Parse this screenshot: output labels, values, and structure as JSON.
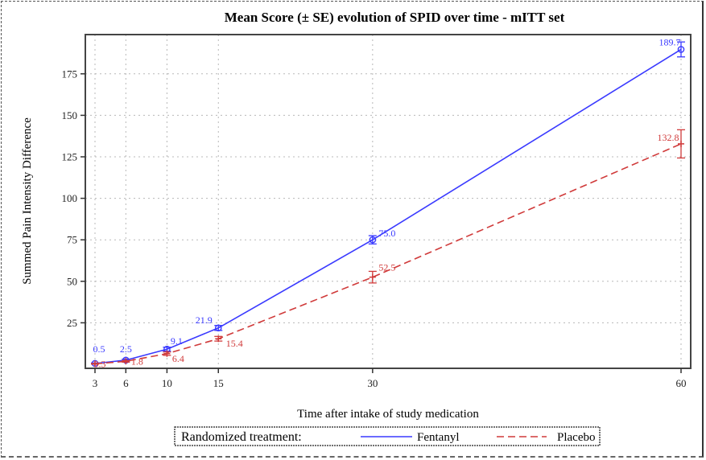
{
  "chart_data": {
    "type": "line",
    "title": "Mean Score (± SE) evolution of SPID over time - mITT set",
    "xlabel": "Time after intake of study medication",
    "ylabel": "Summed Pain Intensity Difference",
    "x": [
      3,
      6,
      10,
      15,
      30,
      60
    ],
    "x_tick_labels": [
      "3",
      "6",
      "10",
      "15",
      "30",
      "60"
    ],
    "y_ticks": [
      25,
      50,
      75,
      100,
      125,
      150,
      175
    ],
    "y_tick_labels": [
      "25",
      "50",
      "75",
      "100",
      "125",
      "150",
      "175"
    ],
    "xlim": [
      3,
      60
    ],
    "ylim": [
      0,
      195
    ],
    "grid": true,
    "legend": {
      "title": "Randomized treatment:",
      "placement": "bottom"
    },
    "series": [
      {
        "name": "Fentanyl",
        "color": "#3a3aff",
        "line_style": "solid",
        "marker": "circle",
        "values": [
          0.5,
          2.5,
          9.1,
          21.9,
          75.0,
          189.7
        ],
        "se": [
          0.3,
          0.6,
          1.2,
          1.5,
          2.5,
          4.5
        ],
        "labels": [
          "0.5",
          "2.5",
          "9.1",
          "21.9",
          "75.0",
          "189.7"
        ]
      },
      {
        "name": "Placebo",
        "color": "#d03a3a",
        "line_style": "dashed",
        "marker": "plus",
        "values": [
          0.3,
          1.8,
          6.4,
          15.4,
          52.5,
          132.8
        ],
        "se": [
          0.2,
          0.5,
          1.0,
          1.4,
          3.5,
          8.5
        ],
        "labels": [
          "0.3",
          "1.8",
          "6.4",
          "15.4",
          "52.5",
          "132.8"
        ]
      }
    ]
  }
}
